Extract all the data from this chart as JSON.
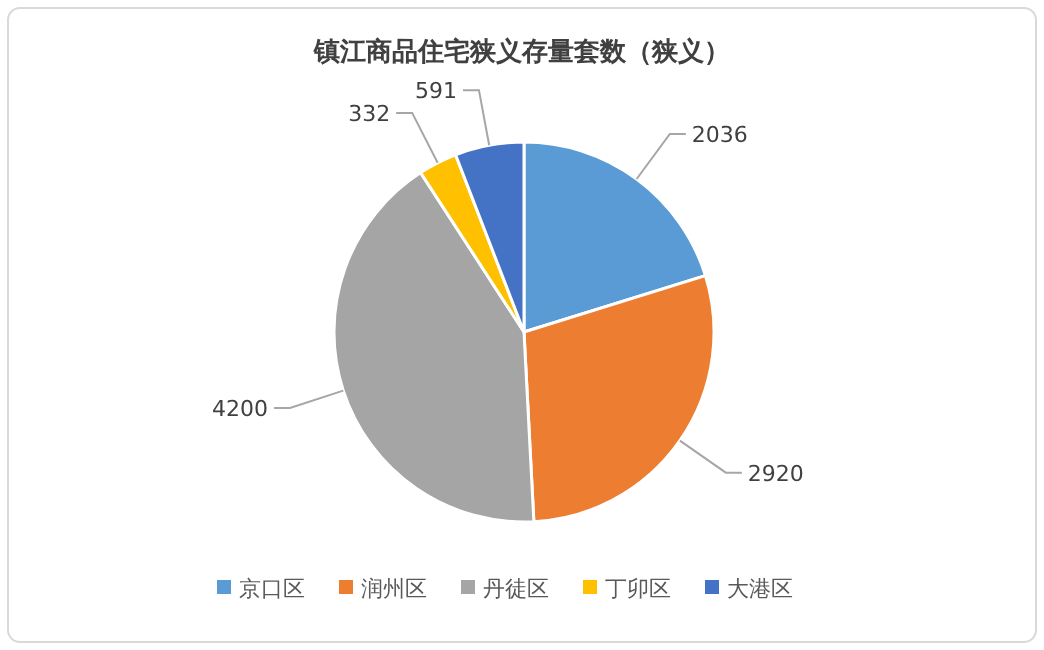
{
  "chart_data": {
    "type": "pie",
    "title": "镇江商品住宅狭义存量套数（狭义）",
    "categories": [
      "京口区",
      "润州区",
      "丹徒区",
      "丁卯区",
      "大港区"
    ],
    "values": [
      2036,
      2920,
      4200,
      332,
      591
    ],
    "colors": [
      "#5b9bd5",
      "#ed7d31",
      "#a5a5a5",
      "#ffc000",
      "#4472c4"
    ],
    "data_labels": true,
    "legend": "bottom"
  }
}
